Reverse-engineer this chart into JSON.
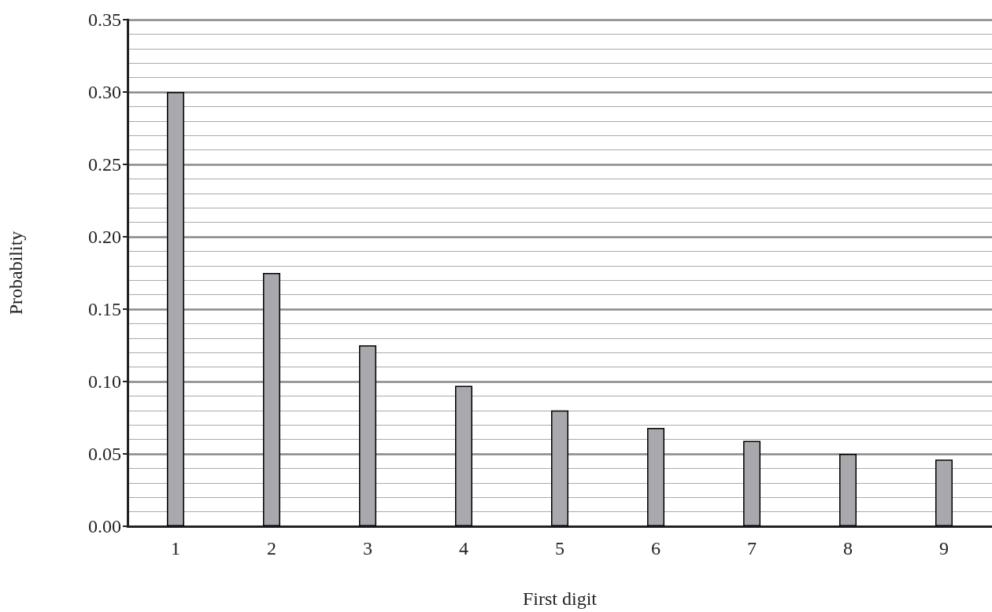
{
  "chart_data": {
    "type": "bar",
    "xlabel": "First digit",
    "ylabel": "Probability",
    "categories": [
      "1",
      "2",
      "3",
      "4",
      "5",
      "6",
      "7",
      "8",
      "9"
    ],
    "values": [
      0.3,
      0.175,
      0.125,
      0.097,
      0.08,
      0.068,
      0.059,
      0.05,
      0.046
    ],
    "color": "#a7a9ac",
    "ylim": [
      0,
      0.35
    ],
    "yticks": [
      {
        "value": 0,
        "label": "0.00"
      },
      {
        "value": 0.05,
        "label": "0.05"
      },
      {
        "value": 0.1,
        "label": "0.10"
      },
      {
        "value": 0.15,
        "label": "0.15"
      },
      {
        "value": 0.2,
        "label": "0.20"
      },
      {
        "value": 0.25,
        "label": "0.25"
      },
      {
        "value": 0.3,
        "label": "0.30"
      },
      {
        "value": 0.35,
        "label": "0.35"
      }
    ],
    "grid": "y"
  }
}
